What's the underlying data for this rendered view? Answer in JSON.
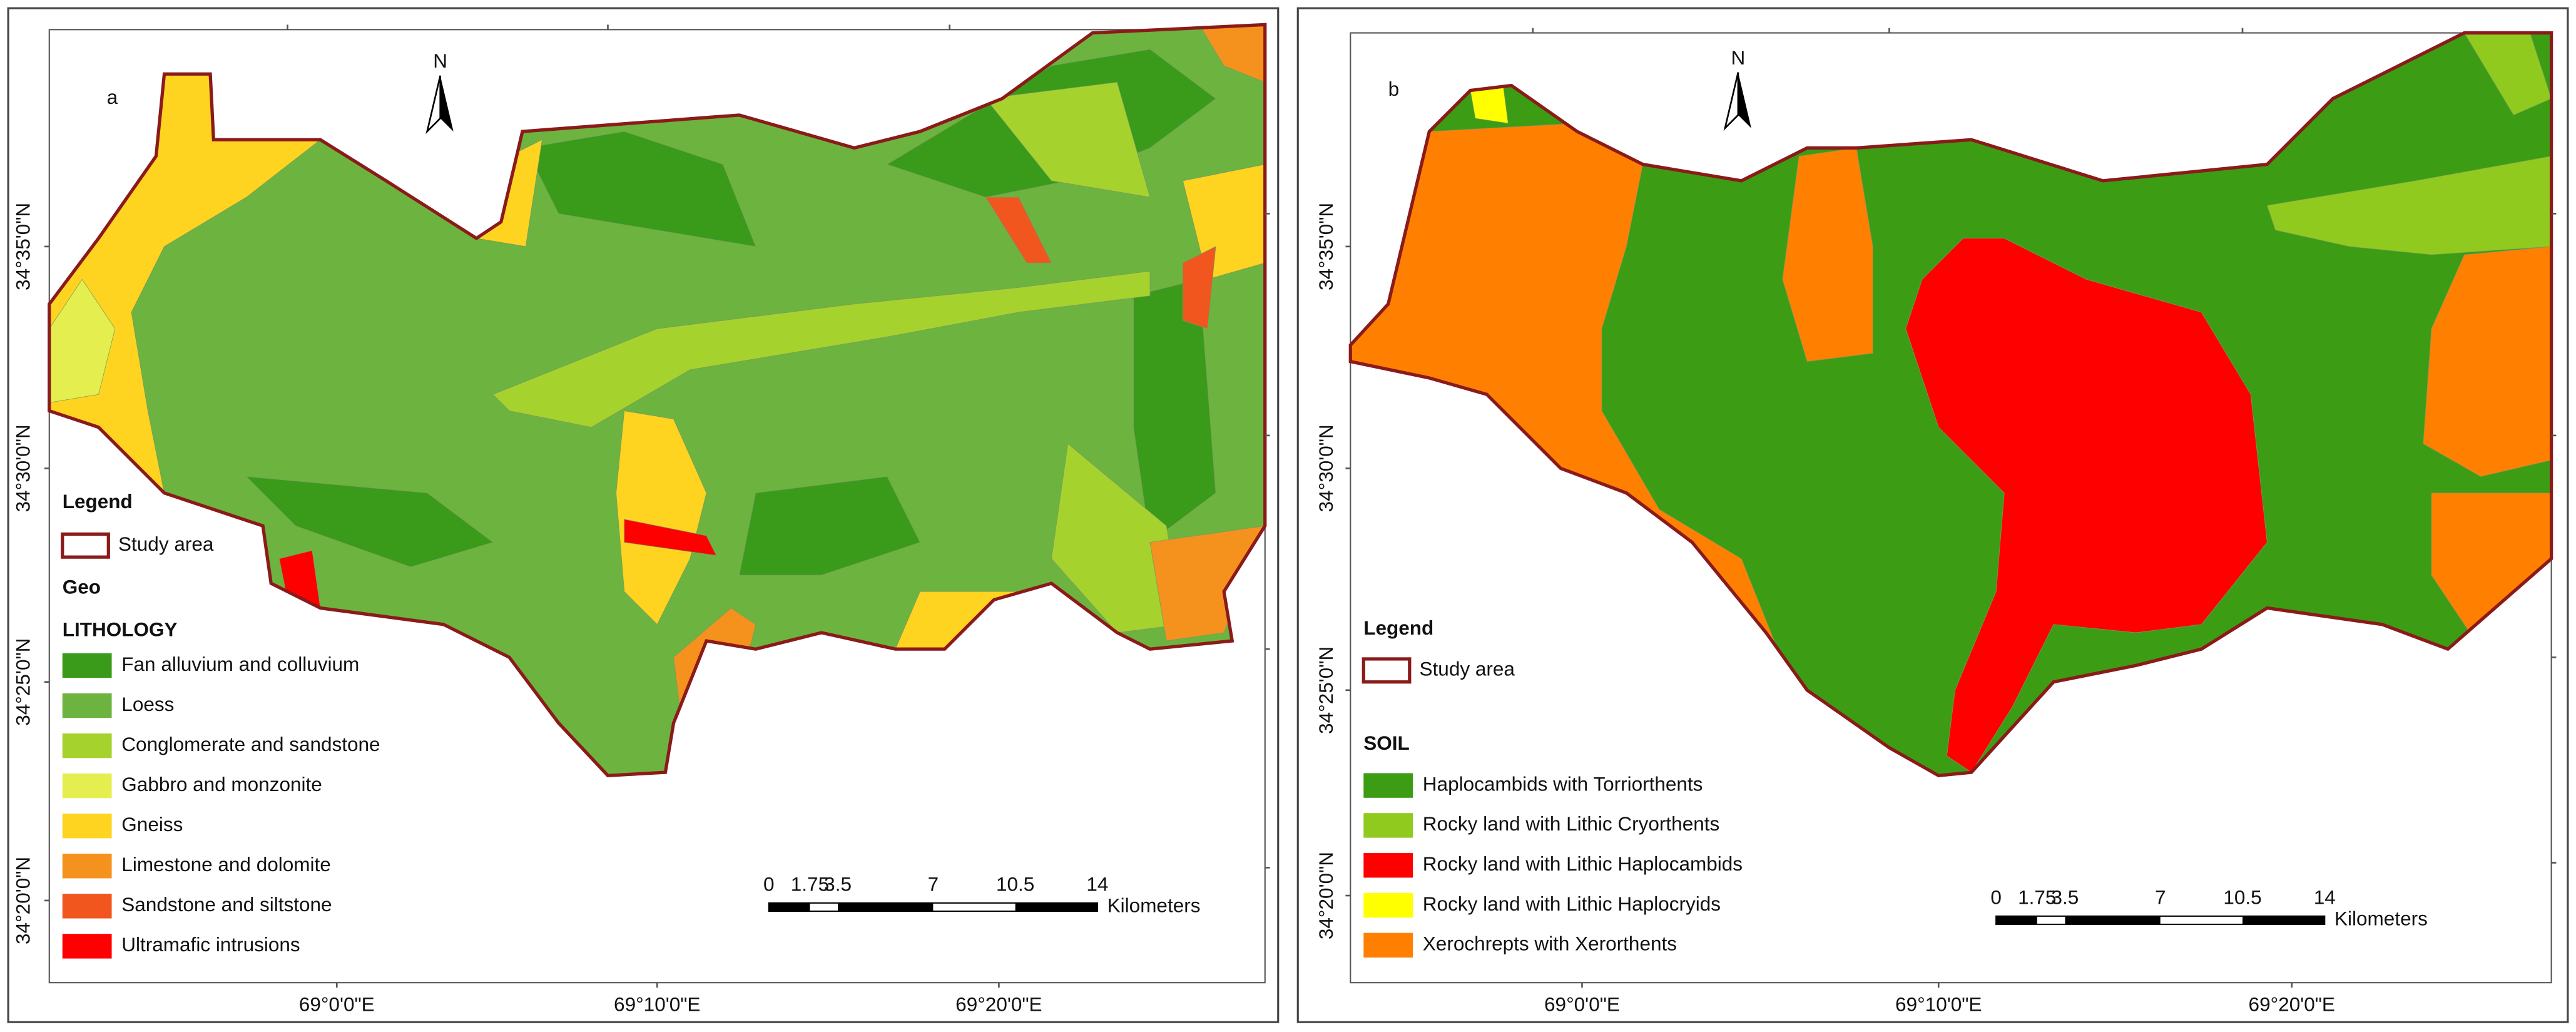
{
  "panels": [
    {
      "label": "a",
      "north": "N",
      "lat_labels": [
        "34°35'0\"N",
        "34°30'0\"N",
        "34°25'0\"N",
        "34°20'0\"N"
      ],
      "lon_labels": [
        "69°0'0\"E",
        "69°10'0\"E",
        "69°20'0\"E"
      ],
      "legend": {
        "title": "Legend",
        "study_area": "Study area",
        "group_title": "Geo",
        "class_title": "LITHOLOGY",
        "classes": [
          {
            "name": "Fan alluvium and colluvium",
            "color": "#3a9a1a"
          },
          {
            "name": "Loess",
            "color": "#6db33f"
          },
          {
            "name": "Conglomerate and sandstone",
            "color": "#a6d22e"
          },
          {
            "name": "Gabbro and monzonite",
            "color": "#e4ef4f"
          },
          {
            "name": "Gneiss",
            "color": "#ffd420"
          },
          {
            "name": "Limestone and dolomite",
            "color": "#f5921e"
          },
          {
            "name": "Sandstone and siltstone",
            "color": "#f0561e"
          },
          {
            "name": "Ultramafic intrusions",
            "color": "#ff0000"
          }
        ]
      },
      "scale": {
        "ticks": [
          "0",
          "1.75",
          "3.5",
          "7",
          "10.5",
          "14"
        ],
        "unit": "Kilometers"
      }
    },
    {
      "label": "b",
      "north": "N",
      "lat_labels": [
        "34°35'0\"N",
        "34°30'0\"N",
        "34°25'0\"N",
        "34°20'0\"N"
      ],
      "lon_labels": [
        "69°0'0\"E",
        "69°10'0\"E",
        "69°20'0\"E"
      ],
      "legend": {
        "title": "Legend",
        "study_area": "Study area",
        "class_title": "SOIL",
        "classes": [
          {
            "name": "Haplocambids with Torriorthents",
            "color": "#3c9c14"
          },
          {
            "name": "Rocky land with Lithic Cryorthents",
            "color": "#90ca1e"
          },
          {
            "name": "Rocky land with Lithic Haplocambids",
            "color": "#ff0000"
          },
          {
            "name": "Rocky land with Lithic Haplocryids",
            "color": "#ffff00"
          },
          {
            "name": "Xerochrepts with Xerorthents",
            "color": "#ff8000"
          }
        ]
      },
      "scale": {
        "ticks": [
          "0",
          "1.75",
          "3.5",
          "7",
          "10.5",
          "14"
        ],
        "unit": "Kilometers"
      }
    }
  ]
}
